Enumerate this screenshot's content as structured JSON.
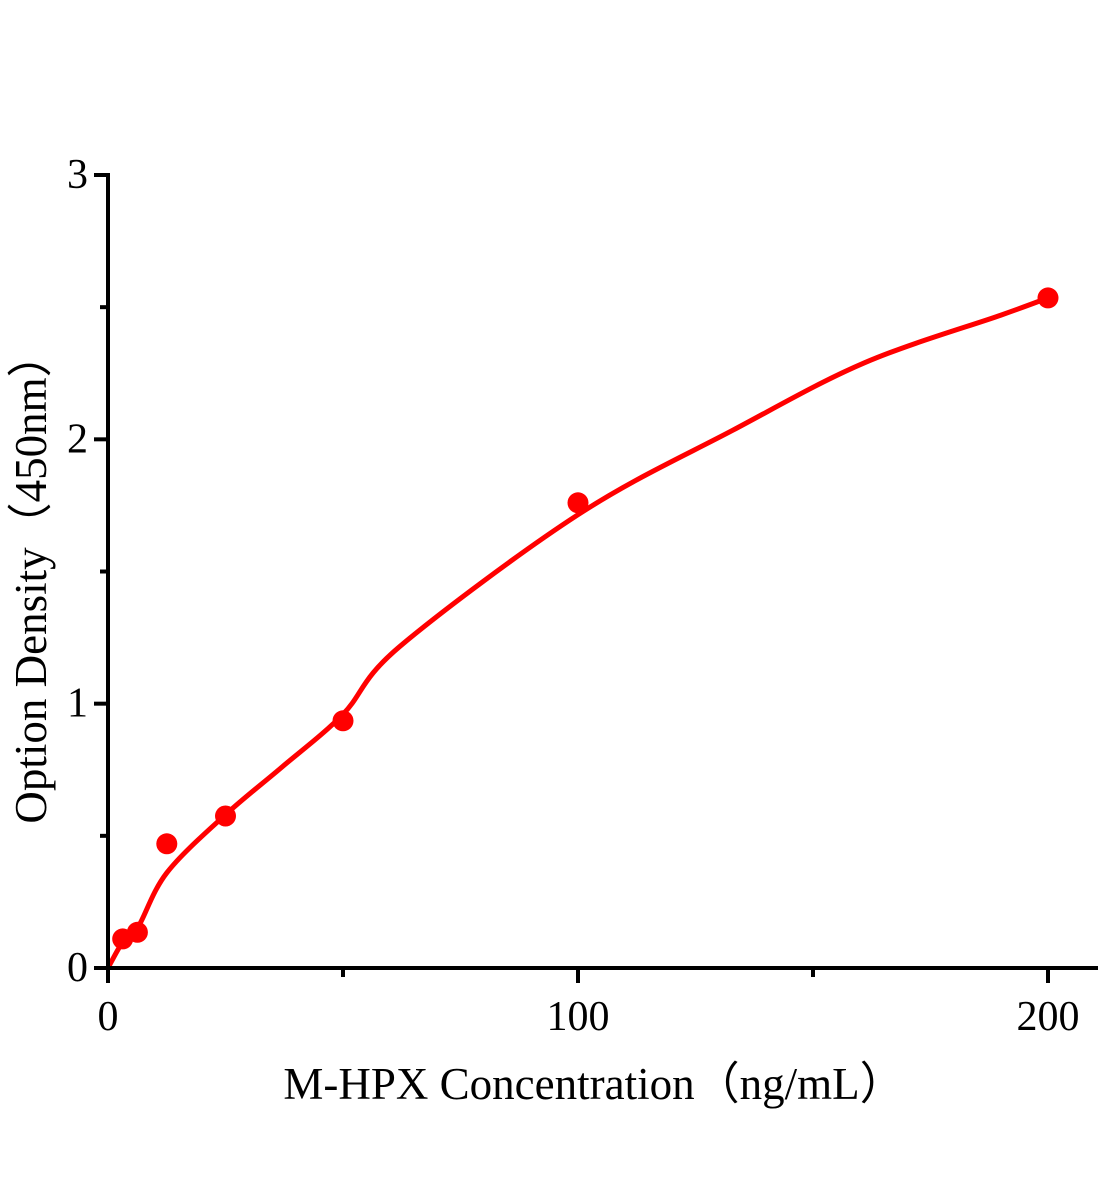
{
  "chart_data": {
    "type": "scatter",
    "title": "",
    "xlabel": "M-HPX Concentration（ng/mL）",
    "ylabel": "Option Density（450nm）",
    "xlim": [
      0,
      210.5
    ],
    "ylim": [
      0,
      3
    ],
    "grid": false,
    "legend": "none",
    "x_ticks_major": [
      0,
      100,
      200
    ],
    "x_ticks_minor": [
      50,
      150
    ],
    "y_ticks_major": [
      0,
      1,
      2,
      3
    ],
    "y_ticks_minor": [
      0.5,
      1.5,
      2.5
    ],
    "series": [
      {
        "name": "standard-points",
        "kind": "scatter",
        "points": [
          {
            "x": 3.125,
            "y": 0.11
          },
          {
            "x": 6.25,
            "y": 0.135
          },
          {
            "x": 12.5,
            "y": 0.47
          },
          {
            "x": 25,
            "y": 0.575
          },
          {
            "x": 50,
            "y": 0.935
          },
          {
            "x": 100,
            "y": 1.76
          },
          {
            "x": 200,
            "y": 2.535
          }
        ]
      },
      {
        "name": "fitted-curve",
        "kind": "line",
        "points": [
          {
            "x": 0,
            "y": 0
          },
          {
            "x": 3.2,
            "y": 0.1
          },
          {
            "x": 6.4,
            "y": 0.155
          },
          {
            "x": 12.5,
            "y": 0.36
          },
          {
            "x": 25,
            "y": 0.58
          },
          {
            "x": 37,
            "y": 0.76
          },
          {
            "x": 50,
            "y": 0.96
          },
          {
            "x": 62,
            "y": 1.215
          },
          {
            "x": 100,
            "y": 1.715
          },
          {
            "x": 133,
            "y": 2.035
          },
          {
            "x": 161,
            "y": 2.29
          },
          {
            "x": 190,
            "y": 2.47
          },
          {
            "x": 200,
            "y": 2.535
          }
        ]
      }
    ],
    "colors": {
      "series_red": "#ff0000",
      "axis": "#000000",
      "background": "#ffffff"
    }
  }
}
